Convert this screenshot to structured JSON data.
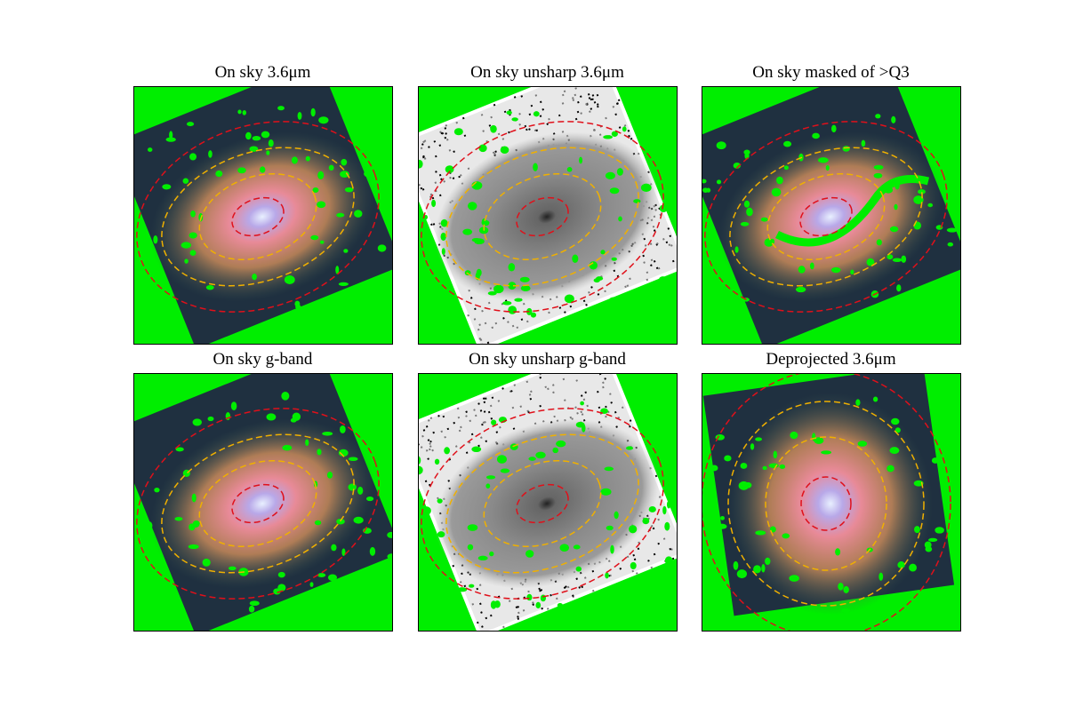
{
  "panels": [
    {
      "title": "On sky 3.6μm"
    },
    {
      "title": "On sky unsharp 3.6μm"
    },
    {
      "title": "On sky masked of >Q3"
    },
    {
      "title": "On sky g-band"
    },
    {
      "title": "On sky unsharp g-band"
    },
    {
      "title": "Deprojected 3.6μm"
    }
  ]
}
